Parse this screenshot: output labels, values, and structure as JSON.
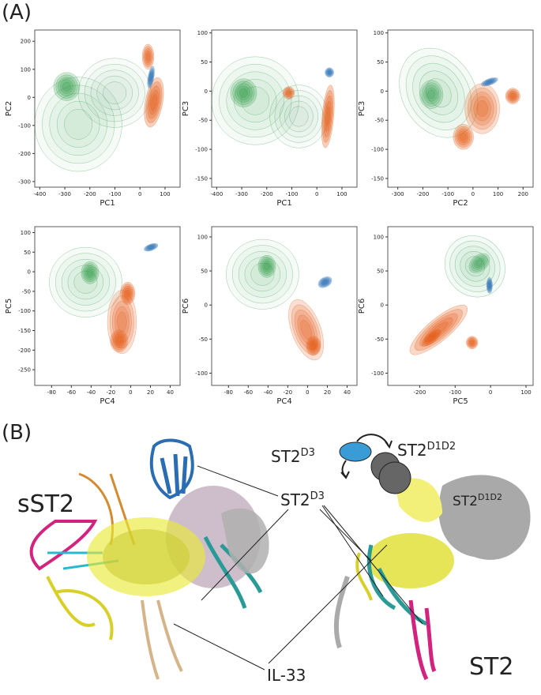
{
  "panel_a": {
    "label": "(A)",
    "charts": [
      {
        "type": "density",
        "xlabel": "PC1",
        "ylabel": "PC2",
        "xlim": [
          -420,
          160
        ],
        "ylim": [
          -320,
          240
        ],
        "xticks": [
          -400,
          -300,
          -200,
          -100,
          0,
          100
        ],
        "yticks": [
          -300,
          -200,
          -100,
          0,
          100,
          200
        ]
      },
      {
        "type": "density",
        "xlabel": "PC1",
        "ylabel": "PC3",
        "xlim": [
          -420,
          160
        ],
        "ylim": [
          -165,
          105
        ],
        "xticks": [
          -400,
          -300,
          -200,
          -100,
          0,
          100
        ],
        "yticks": [
          -150,
          -100,
          -50,
          0,
          50,
          100
        ]
      },
      {
        "type": "density",
        "xlabel": "PC2",
        "ylabel": "PC3",
        "xlim": [
          -340,
          240
        ],
        "ylim": [
          -165,
          105
        ],
        "xticks": [
          -300,
          -200,
          -100,
          0,
          100,
          200
        ],
        "yticks": [
          -150,
          -100,
          -50,
          0,
          50,
          100
        ]
      },
      {
        "type": "density",
        "xlabel": "PC4",
        "ylabel": "PC5",
        "xlim": [
          -97,
          50
        ],
        "ylim": [
          -290,
          115
        ],
        "xticks": [
          -80,
          -60,
          -40,
          -20,
          0,
          20,
          40
        ],
        "yticks": [
          -250,
          -200,
          -150,
          -100,
          -50,
          0,
          50,
          100
        ]
      },
      {
        "type": "density",
        "xlabel": "PC4",
        "ylabel": "PC6",
        "xlim": [
          -97,
          50
        ],
        "ylim": [
          -118,
          115
        ],
        "xticks": [
          -80,
          -60,
          -40,
          -20,
          0,
          20,
          40
        ],
        "yticks": [
          -100,
          -50,
          0,
          50,
          100
        ]
      },
      {
        "type": "density",
        "xlabel": "PC5",
        "ylabel": "PC6",
        "xlim": [
          -290,
          120
        ],
        "ylim": [
          -118,
          115
        ],
        "xticks": [
          -200,
          -100,
          0,
          100
        ],
        "yticks": [
          -100,
          -50,
          0,
          50,
          100
        ]
      }
    ]
  },
  "panel_b": {
    "label": "(B)",
    "sst2": "sST2",
    "schematic": {
      "d3": {
        "base": "ST2",
        "sup": "D3"
      },
      "d1d2": {
        "base": "ST2",
        "sup": "D1D2"
      }
    },
    "d3_label": {
      "base": "ST2",
      "sup": "D3"
    },
    "il33": "IL-33",
    "d1d2_label": {
      "base": "ST2",
      "sup": "D1D2"
    },
    "st2": "ST2"
  }
}
